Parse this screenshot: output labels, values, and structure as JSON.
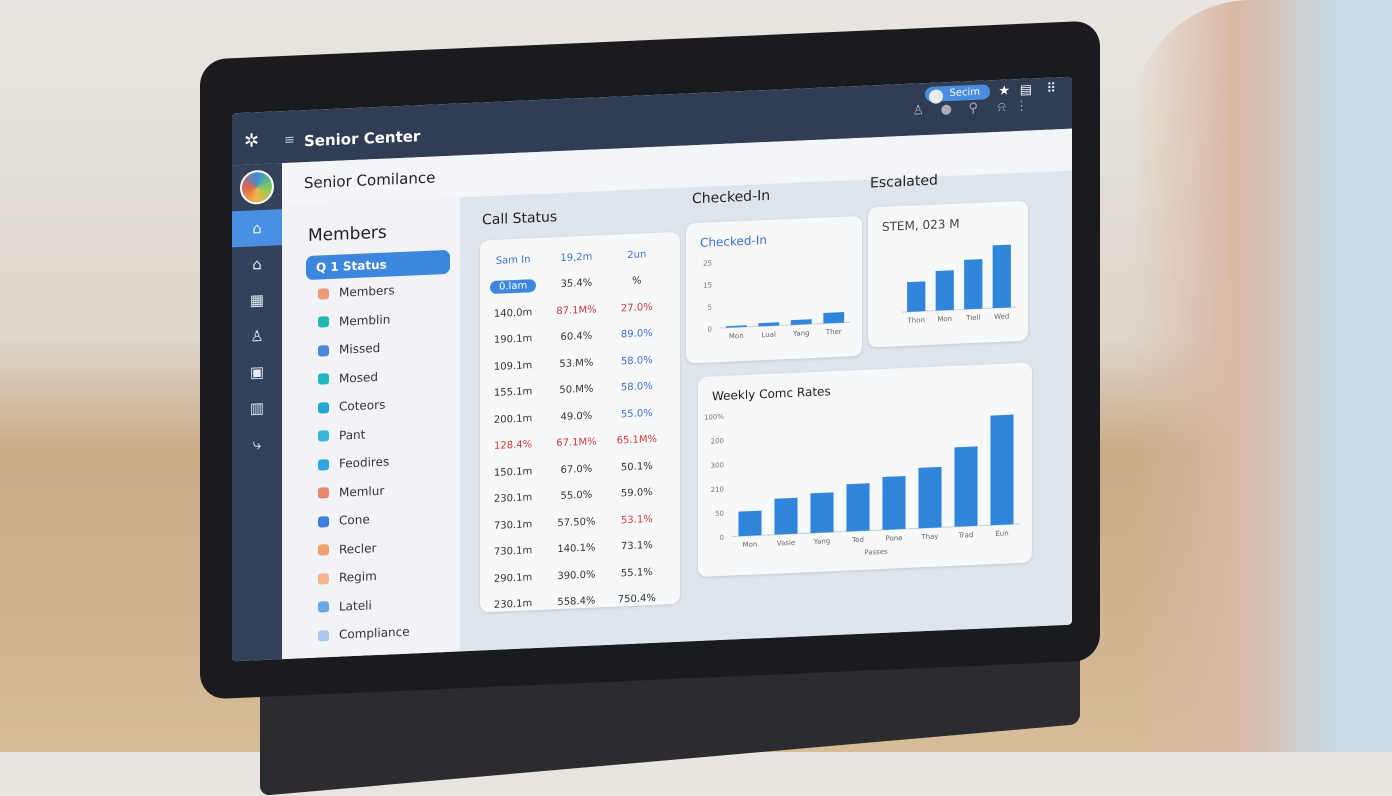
{
  "app": {
    "title": "Senior Center",
    "page_title": "Senior Comilance",
    "pill_label": "Secim"
  },
  "sidebar_icons": [
    "home",
    "house",
    "building",
    "users",
    "archive",
    "grid",
    "route"
  ],
  "nav": {
    "heading": "Members",
    "selected": "Q 1 Status",
    "items": [
      {
        "label": "Members",
        "color": "#f09a7a"
      },
      {
        "label": "Memblin",
        "color": "#1fb7b0"
      },
      {
        "label": "Missed",
        "color": "#4a86e0"
      },
      {
        "label": "Mosed",
        "color": "#1fb7c4"
      },
      {
        "label": "Coteors",
        "color": "#1fa8d0"
      },
      {
        "label": "Pant",
        "color": "#38b6d8"
      },
      {
        "label": "Feodires",
        "color": "#2aa6e0"
      },
      {
        "label": "Memlur",
        "color": "#e8886a"
      },
      {
        "label": "Cone",
        "color": "#3f7fe0"
      },
      {
        "label": "Recler",
        "color": "#f0a070"
      },
      {
        "label": "Regim",
        "color": "#f3b48a"
      },
      {
        "label": "Lateli",
        "color": "#6aa8e8"
      },
      {
        "label": "Compliance",
        "color": "#a8c8ee"
      }
    ]
  },
  "sections": {
    "call_status": "Call Status",
    "checked_in": "Checked-In",
    "escalated": "Escalated"
  },
  "call_table": {
    "headers": [
      "Sam In",
      "19,2m",
      "2un"
    ],
    "badge": "0.lam",
    "rows": [
      [
        "",
        "35.4%",
        "%"
      ],
      [
        "140.0m",
        "87.1M%",
        "27.0%"
      ],
      [
        "190.1m",
        "60.4%",
        "89.0%"
      ],
      [
        "109.1m",
        "53.M%",
        "58.0%"
      ],
      [
        "155.1m",
        "50.M%",
        "58.0%"
      ],
      [
        "200.1m",
        "49.0%",
        "55.0%"
      ],
      [
        "128.4%",
        "67.1M%",
        "65.1M%"
      ],
      [
        "150.1m",
        "67.0%",
        "50.1%"
      ],
      [
        "230.1m",
        "55.0%",
        "59.0%"
      ],
      [
        "730.1m",
        "57.50%",
        "53.1%"
      ],
      [
        "730.1m",
        "140.1%",
        "73.1%"
      ],
      [
        "290.1m",
        "390.0%",
        "55.1%"
      ],
      [
        "230.1m",
        "558.4%",
        "750.4%"
      ]
    ],
    "colors": [
      [
        "",
        "",
        ""
      ],
      [
        "",
        "red",
        "red"
      ],
      [
        "",
        "",
        "blue"
      ],
      [
        "",
        "",
        "blue"
      ],
      [
        "",
        "",
        "blue"
      ],
      [
        "",
        "",
        "blue"
      ],
      [
        "red",
        "red",
        "red"
      ],
      [
        "",
        "",
        ""
      ],
      [
        "",
        "",
        ""
      ],
      [
        "",
        "",
        "red"
      ],
      [
        "",
        "",
        ""
      ],
      [
        "",
        "",
        ""
      ],
      [
        "",
        "",
        ""
      ]
    ]
  },
  "chart_data": [
    {
      "type": "bar",
      "title": "Checked-In",
      "categories": [
        "Mon",
        "Lual",
        "Yang",
        "Ther"
      ],
      "values": [
        0.6,
        1.2,
        1.8,
        4
      ],
      "yticks": [
        "0",
        "5",
        "15",
        "25"
      ],
      "ylim": [
        0,
        25
      ],
      "color": "#2f86db"
    },
    {
      "type": "bar",
      "title": "STEM, 023 M",
      "categories": [
        "Thon",
        "Mon",
        "Tiell",
        "Wed"
      ],
      "values": [
        45,
        60,
        75,
        95
      ],
      "ylim": [
        0,
        100
      ],
      "color": "#2f86db"
    },
    {
      "type": "bar",
      "title": "Weekly Comc Rates",
      "categories": [
        "Mon",
        "Vasie",
        "Yang",
        "Ted",
        "Pone",
        "Thay",
        "Trad",
        "Eun"
      ],
      "values": [
        65,
        95,
        105,
        125,
        140,
        160,
        210,
        290
      ],
      "yticks": [
        "0",
        "50",
        "210",
        "300",
        "200",
        "100%"
      ],
      "ylim": [
        0,
        320
      ],
      "xlabel": "Passes",
      "color": "#2f86db"
    }
  ]
}
